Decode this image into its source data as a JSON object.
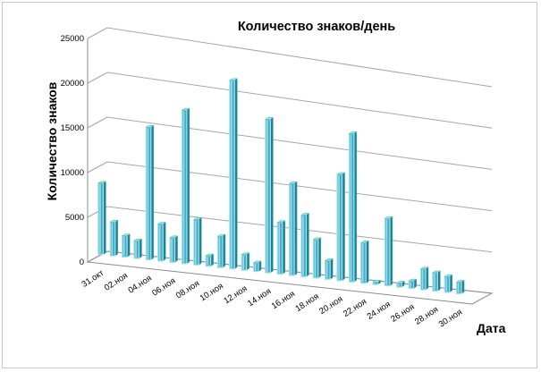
{
  "chart_data": {
    "type": "bar",
    "title": "Количество знаков/день",
    "ylabel": "Количество знаков",
    "xlabel": "Дата",
    "ylim": [
      0,
      25000
    ],
    "yticks": [
      "0",
      "5000",
      "10000",
      "15000",
      "20000",
      "25000"
    ],
    "xtick_labels": [
      "31.окт",
      "02.ноя",
      "04.ноя",
      "06.ноя",
      "08.ноя",
      "10.ноя",
      "12.ноя",
      "14.ноя",
      "16.ноя",
      "18.ноя",
      "20.ноя",
      "22.ноя",
      "24.ноя",
      "26.ноя",
      "28.ноя",
      "30.ноя"
    ],
    "categories": [
      "31.окт",
      "01.ноя",
      "02.ноя",
      "03.ноя",
      "04.ноя",
      "05.ноя",
      "06.ноя",
      "07.ноя",
      "08.ноя",
      "09.ноя",
      "10.ноя",
      "11.ноя",
      "12.ноя",
      "13.ноя",
      "14.ноя",
      "15.ноя",
      "16.ноя",
      "17.ноя",
      "18.ноя",
      "19.ноя",
      "20.ноя",
      "21.ноя",
      "22.ноя",
      "23.ноя",
      "24.ноя",
      "25.ноя",
      "26.ноя",
      "27.ноя",
      "28.ноя",
      "29.ноя",
      "30.ноя"
    ],
    "values": [
      8000,
      3800,
      2400,
      2000,
      15000,
      4200,
      2800,
      17500,
      5200,
      1200,
      3600,
      21700,
      1800,
      1000,
      17800,
      6000,
      10700,
      7200,
      4500,
      2200,
      12500,
      17500,
      4800,
      300,
      8000,
      500,
      900,
      2500,
      2200,
      1900,
      1400
    ],
    "grid": true,
    "legend": "none",
    "colors": {
      "bar_front": "#4bacc6",
      "bar_light": "#9fe3ee",
      "bar_dark": "#1f7f95",
      "bar_outline": "#3db7a0",
      "grid": "#a6a6a6",
      "axis": "#8c8c8c"
    }
  }
}
